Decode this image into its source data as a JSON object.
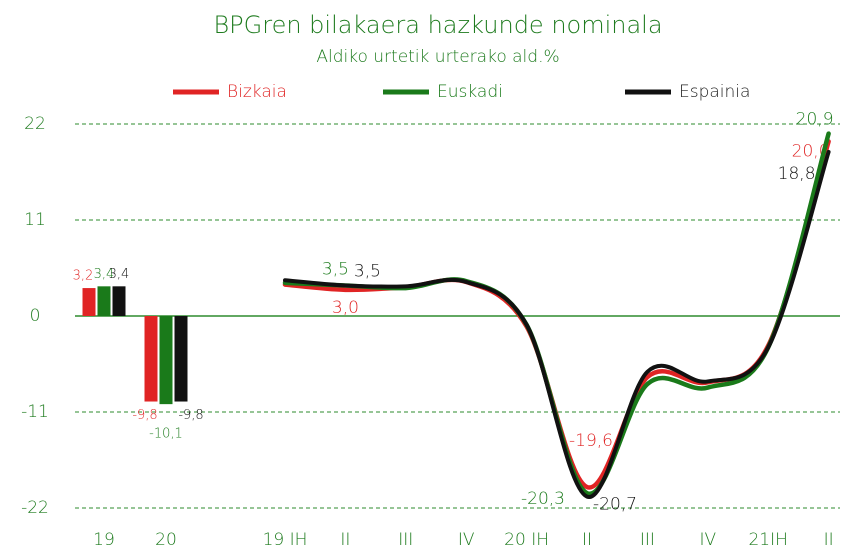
{
  "chart_data": [
    {
      "type": "bar",
      "title": "BPGren bilakaera hazkunde nominala",
      "subtitle": "Aldiko urtetik urterako ald.%",
      "categories": [
        "19",
        "20"
      ],
      "ylim": [
        -22,
        22
      ],
      "yticks": [
        22,
        11,
        0,
        -11,
        -22
      ],
      "grid": true,
      "series": [
        {
          "color": "#e02424",
          "values": [
            3.2,
            -9.8
          ],
          "value_labels": [
            "3,2",
            "-9,8"
          ]
        },
        {
          "color": "#1a7a1a",
          "values": [
            3.4,
            -10.1
          ],
          "value_labels": [
            "3,4",
            "-10,1"
          ]
        },
        {
          "color": "#111111",
          "values": [
            3.4,
            -9.8
          ],
          "value_labels": [
            "3,4",
            "-9,8"
          ]
        }
      ]
    },
    {
      "type": "line",
      "categories": [
        "19 IH",
        "II",
        "III",
        "IV",
        "20 IH",
        "II",
        "III",
        "IV",
        "21IH",
        "II"
      ],
      "ylim": [
        -22,
        22
      ],
      "legend": "top",
      "series": [
        {
          "name": "Bizkaia",
          "color": "#e02424",
          "values": [
            3.6,
            3.0,
            3.3,
            3.9,
            -1.2,
            -19.6,
            -7.0,
            -7.6,
            -3.4,
            20.0
          ],
          "value_labels": [
            null,
            "3,0",
            null,
            null,
            null,
            "-19,6",
            null,
            null,
            null,
            "20,0"
          ]
        },
        {
          "name": "Euskadi",
          "color": "#1a7a1a",
          "values": [
            3.8,
            3.5,
            3.2,
            4.0,
            -1.0,
            -20.3,
            -7.8,
            -8.2,
            -3.6,
            20.9
          ],
          "value_labels": [
            null,
            "3,5",
            null,
            null,
            null,
            "-20,3",
            null,
            null,
            null,
            "20,9"
          ]
        },
        {
          "name": "Espainia",
          "color": "#111111",
          "values": [
            4.1,
            3.5,
            3.4,
            3.9,
            -1.0,
            -20.7,
            -6.4,
            -7.5,
            -3.6,
            18.8
          ],
          "value_labels": [
            null,
            "3,5",
            null,
            null,
            null,
            "-20,7",
            null,
            null,
            null,
            "18,8"
          ]
        }
      ]
    }
  ]
}
